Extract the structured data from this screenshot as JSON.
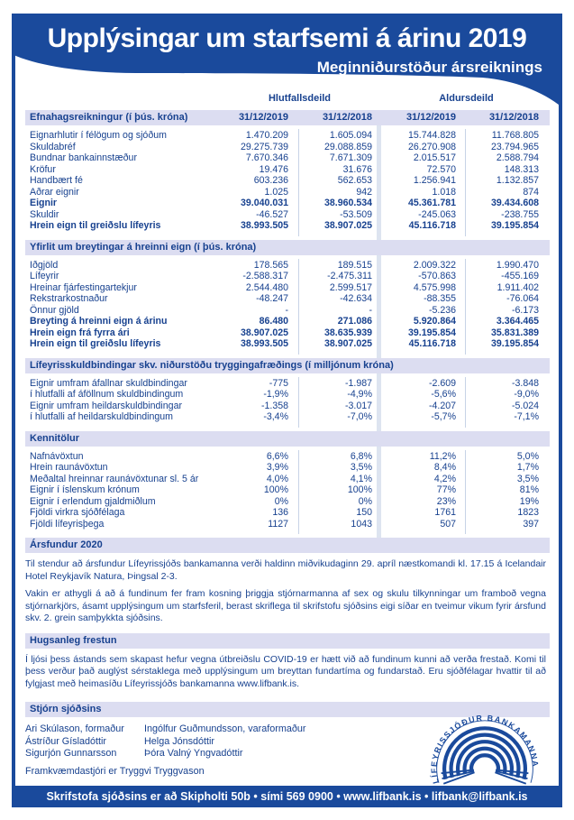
{
  "header": {
    "title": "Upplýsingar um starfsemi á árinu 2019",
    "subtitle": "Meginniðurstöður ársreiknings"
  },
  "colgroups": {
    "group1": "Hlutfallsdeild",
    "group2": "Aldursdeild",
    "dates": [
      "31/12/2019",
      "31/12/2018",
      "31/12/2019",
      "31/12/2018"
    ]
  },
  "tables": [
    {
      "title": "Efnahagsreikningur (í þús. króna)",
      "rows": [
        {
          "label": "Eignarhlutir í félögum og sjóðum",
          "values": [
            "1.470.209",
            "1.605.094",
            "15.744.828",
            "11.768.805"
          ],
          "bold": false
        },
        {
          "label": "Skuldabréf",
          "values": [
            "29.275.739",
            "29.088.859",
            "26.270.908",
            "23.794.965"
          ],
          "bold": false
        },
        {
          "label": "Bundnar bankainnstæður",
          "values": [
            "7.670.346",
            "7.671.309",
            "2.015.517",
            "2.588.794"
          ],
          "bold": false
        },
        {
          "label": "Kröfur",
          "values": [
            "19.476",
            "31.676",
            "72.570",
            "148.313"
          ],
          "bold": false
        },
        {
          "label": "Handbært fé",
          "values": [
            "603.236",
            "562.653",
            "1.256.941",
            "1.132.857"
          ],
          "bold": false
        },
        {
          "label": "Aðrar eignir",
          "values": [
            "1.025",
            "942",
            "1.018",
            "874"
          ],
          "bold": false
        },
        {
          "label": "Eignir",
          "values": [
            "39.040.031",
            "38.960.534",
            "45.361.781",
            "39.434.608"
          ],
          "bold": true
        },
        {
          "label": "Skuldir",
          "values": [
            "-46.527",
            "-53.509",
            "-245.063",
            "-238.755"
          ],
          "bold": false
        },
        {
          "label": "Hrein eign til greiðslu lífeyris",
          "values": [
            "38.993.505",
            "38.907.025",
            "45.116.718",
            "39.195.854"
          ],
          "bold": true
        }
      ]
    },
    {
      "title": "Yfirlit um breytingar á hreinni eign (í þús. króna)",
      "rows": [
        {
          "label": "Iðgjöld",
          "values": [
            "178.565",
            "189.515",
            "2.009.322",
            "1.990.470"
          ],
          "bold": false
        },
        {
          "label": "Lífeyrir",
          "values": [
            "-2.588.317",
            "-2.475.311",
            "-570.863",
            "-455.169"
          ],
          "bold": false
        },
        {
          "label": "Hreinar fjárfestingartekjur",
          "values": [
            "2.544.480",
            "2.599.517",
            "4.575.998",
            "1.911.402"
          ],
          "bold": false
        },
        {
          "label": "Rekstrarkostnaður",
          "values": [
            "-48.247",
            "-42.634",
            "-88.355",
            "-76.064"
          ],
          "bold": false
        },
        {
          "label": "Önnur gjöld",
          "values": [
            "-",
            "-",
            "-5.236",
            "-6.173"
          ],
          "bold": false
        },
        {
          "label": "Breyting á hreinni eign á árinu",
          "values": [
            "86.480",
            "271.086",
            "5.920.864",
            "3.364.465"
          ],
          "bold": true
        },
        {
          "label": "Hrein eign frá fyrra ári",
          "values": [
            "38.907.025",
            "38.635.939",
            "39.195.854",
            "35.831.389"
          ],
          "bold": true
        },
        {
          "label": "Hrein eign til greiðslu lífeyris",
          "values": [
            "38.993.505",
            "38.907.025",
            "45.116.718",
            "39.195.854"
          ],
          "bold": true
        }
      ]
    },
    {
      "title": "Lífeyrisskuldbindingar skv. niðurstöðu tryggingafræðings (í milljónum króna)",
      "rows": [
        {
          "label": "Eignir umfram áfallnar skuldbindingar",
          "values": [
            "-775",
            "-1.987",
            "-2.609",
            "-3.848"
          ],
          "bold": false
        },
        {
          "label": "í hlutfalli af áföllnum skuldbindingum",
          "values": [
            "-1,9%",
            "-4,9%",
            "-5,6%",
            "-9,0%"
          ],
          "bold": false
        },
        {
          "label": "Eignir umfram heildarskuldbindingar",
          "values": [
            "-1.358",
            "-3.017",
            "-4.207",
            "-5.024"
          ],
          "bold": false
        },
        {
          "label": "í hlutfalli af heildarskuldbindingum",
          "values": [
            "-3,4%",
            "-7,0%",
            "-5,7%",
            "-7,1%"
          ],
          "bold": false
        }
      ]
    },
    {
      "title": "Kennitölur",
      "rows": [
        {
          "label": "Nafnávöxtun",
          "values": [
            "6,6%",
            "6,8%",
            "11,2%",
            "5,0%"
          ],
          "bold": false
        },
        {
          "label": "Hrein raunávöxtun",
          "values": [
            "3,9%",
            "3,5%",
            "8,4%",
            "1,7%"
          ],
          "bold": false
        },
        {
          "label": "Meðaltal hreinnar raunávöxtunar sl. 5 ár",
          "values": [
            "4,0%",
            "4,1%",
            "4,2%",
            "3,5%"
          ],
          "bold": false
        },
        {
          "label": "Eignir í íslenskum krónum",
          "values": [
            "100%",
            "100%",
            "77%",
            "81%"
          ],
          "bold": false
        },
        {
          "label": "Eignir í erlendum gjaldmiðlum",
          "values": [
            "0%",
            "0%",
            "23%",
            "19%"
          ],
          "bold": false
        },
        {
          "label": "Fjöldi virkra sjóðfélaga",
          "values": [
            "136",
            "150",
            "1761",
            "1823"
          ],
          "bold": false
        },
        {
          "label": "Fjöldi lífeyrisþega",
          "values": [
            "1127",
            "1043",
            "507",
            "397"
          ],
          "bold": false
        }
      ]
    }
  ],
  "text_sections": [
    {
      "title": "Ársfundur 2020",
      "paragraphs": [
        "Til stendur að ársfundur Lífeyrissjóðs bankamanna verði haldinn miðvikudaginn 29. apríl næstkomandi kl. 17.15 á Icelandair Hotel Reykjavík Natura, Þingsal 2-3.",
        "Vakin er athygli á að á fundinum fer fram kosning þriggja stjórnarmanna af sex og skulu tilkynningar um framboð vegna stjórnarkjörs, ásamt upplýsingum um starfsferil, berast skriflega til skrifstofu sjóðsins eigi síðar en tveimur vikum fyrir ársfund skv. 2. grein samþykkta sjóðsins."
      ]
    },
    {
      "title": "Hugsanleg frestun",
      "paragraphs": [
        "Í ljósi þess ástands sem skapast hefur vegna útbreiðslu COVID-19 er hætt við að fundinum kunni að verða frestað. Komi til þess verður það auglýst sérstaklega með upplýsingum um breyttan fundartíma og fundarstað.  Eru sjóðfélagar hvattir til að fylgjast með heimasíðu Lífeyrissjóðs bankamanna www.lifbank.is."
      ]
    }
  ],
  "board": {
    "title": "Stjórn sjóðsins",
    "members_left": [
      "Ari Skúlason, formaður",
      "Ástríður Gísladóttir",
      "Sigurjón Gunnarsson"
    ],
    "members_right": [
      "Ingólfur Guðmundsson, varaformaður",
      "Helga Jónsdóttir",
      "Þóra Valný Yngvadóttir"
    ],
    "managing_director": "Framkvæmdastjóri er Tryggvi Tryggvason"
  },
  "logo": {
    "text": "LÍFEYRISSJÓÐUR BANKAMANNA"
  },
  "footer": {
    "contact": "Skrifstofa sjóðsins er að Skipholti 50b • sími 569 0900 • www.lifbank.is  • lifbank@lifbank.is"
  },
  "colors": {
    "primary_blue": "#1a4a9c",
    "text_blue": "#17418f",
    "section_bar": "#dcddf1",
    "divider_band": "#dde4f0"
  }
}
